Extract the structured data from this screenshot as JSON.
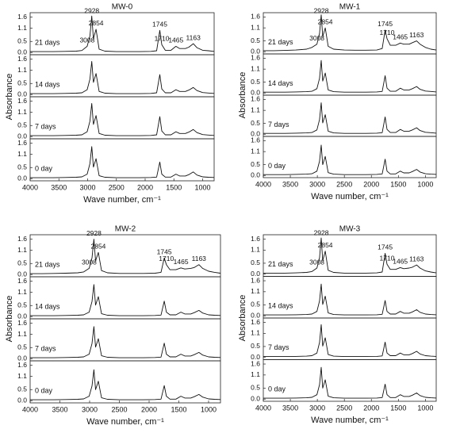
{
  "chart_data": [
    {
      "type": "line",
      "title": "MW-0",
      "xlabel": "Wave number, cm⁻¹",
      "ylabel": "Absorbance",
      "x": [
        4000,
        3800,
        3600,
        3400,
        3200,
        3100,
        3008,
        2960,
        2928,
        2900,
        2854,
        2800,
        2700,
        2500,
        2300,
        2100,
        1900,
        1800,
        1745,
        1710,
        1650,
        1550,
        1465,
        1400,
        1300,
        1240,
        1163,
        1100,
        1000,
        900,
        800
      ],
      "xlim": [
        4000,
        800
      ],
      "xticks": [
        4000,
        3500,
        3000,
        2500,
        2000,
        1500,
        1000
      ],
      "ylim": [
        -0.1,
        1.8
      ],
      "yticks": [
        {
          "value": 0,
          "label": "0.0"
        },
        0.5,
        1.1,
        1.6
      ],
      "color": "#111111",
      "series": [
        {
          "name": "21 days",
          "values": [
            0.04,
            0.04,
            0.04,
            0.05,
            0.06,
            0.09,
            0.28,
            0.75,
            1.65,
            0.62,
            1.05,
            0.15,
            0.06,
            0.04,
            0.04,
            0.04,
            0.05,
            0.08,
            1.0,
            0.35,
            0.1,
            0.1,
            0.28,
            0.18,
            0.18,
            0.24,
            0.4,
            0.22,
            0.1,
            0.08,
            0.05
          ]
        },
        {
          "name": "14 days",
          "values": [
            0.04,
            0.04,
            0.04,
            0.05,
            0.06,
            0.08,
            0.22,
            0.7,
            1.5,
            0.55,
            0.95,
            0.14,
            0.06,
            0.04,
            0.04,
            0.04,
            0.05,
            0.08,
            0.9,
            0.25,
            0.08,
            0.08,
            0.22,
            0.14,
            0.14,
            0.2,
            0.32,
            0.18,
            0.09,
            0.07,
            0.05
          ]
        },
        {
          "name": "7 days",
          "values": [
            0.04,
            0.04,
            0.04,
            0.05,
            0.06,
            0.08,
            0.22,
            0.7,
            1.5,
            0.55,
            0.95,
            0.14,
            0.06,
            0.04,
            0.04,
            0.04,
            0.05,
            0.08,
            0.9,
            0.25,
            0.08,
            0.08,
            0.22,
            0.14,
            0.14,
            0.2,
            0.32,
            0.18,
            0.09,
            0.07,
            0.05
          ]
        },
        {
          "name": "0 day",
          "values": [
            0.04,
            0.04,
            0.04,
            0.05,
            0.06,
            0.08,
            0.2,
            0.68,
            1.45,
            0.52,
            0.9,
            0.13,
            0.06,
            0.04,
            0.04,
            0.04,
            0.05,
            0.07,
            0.75,
            0.2,
            0.07,
            0.07,
            0.2,
            0.12,
            0.12,
            0.18,
            0.3,
            0.16,
            0.08,
            0.06,
            0.05
          ]
        }
      ],
      "annotations": [
        {
          "text": "2928",
          "x": 2928
        },
        {
          "text": "3008",
          "x": 3008
        },
        {
          "text": "2854",
          "x": 2854
        },
        {
          "text": "1745",
          "x": 1745
        },
        {
          "text": "1710",
          "x": 1710
        },
        {
          "text": "1465",
          "x": 1465
        },
        {
          "text": "1163",
          "x": 1163
        }
      ]
    },
    {
      "type": "line",
      "title": "MW-1",
      "xlabel": "Wave number, cm⁻¹",
      "ylabel": "Absorbance",
      "x": [
        4000,
        3800,
        3600,
        3400,
        3200,
        3100,
        3008,
        2960,
        2928,
        2900,
        2854,
        2800,
        2700,
        2500,
        2300,
        2100,
        1900,
        1800,
        1745,
        1710,
        1650,
        1550,
        1465,
        1400,
        1300,
        1240,
        1163,
        1100,
        1000,
        900,
        800
      ],
      "xlim": [
        4000,
        800
      ],
      "xticks": [
        4000,
        3500,
        3000,
        2500,
        2000,
        1500,
        1000
      ],
      "ylim": [
        -0.1,
        1.8
      ],
      "yticks": [
        {
          "value": 0,
          "label": "0.0"
        },
        0.5,
        1.1,
        1.6
      ],
      "color": "#111111",
      "series": [
        {
          "name": "21 days",
          "values": [
            0.05,
            0.05,
            0.06,
            0.08,
            0.12,
            0.2,
            0.35,
            0.85,
            1.7,
            0.7,
            1.1,
            0.25,
            0.12,
            0.08,
            0.07,
            0.07,
            0.08,
            0.15,
            1.0,
            0.6,
            0.3,
            0.3,
            0.4,
            0.35,
            0.35,
            0.42,
            0.5,
            0.35,
            0.2,
            0.12,
            0.08
          ]
        },
        {
          "name": "14 days",
          "values": [
            0.04,
            0.04,
            0.04,
            0.05,
            0.06,
            0.08,
            0.2,
            0.68,
            1.5,
            0.55,
            0.92,
            0.14,
            0.06,
            0.04,
            0.04,
            0.04,
            0.05,
            0.07,
            0.8,
            0.22,
            0.08,
            0.08,
            0.22,
            0.14,
            0.14,
            0.2,
            0.3,
            0.17,
            0.09,
            0.07,
            0.05
          ]
        },
        {
          "name": "7 days",
          "values": [
            0.04,
            0.04,
            0.04,
            0.05,
            0.06,
            0.08,
            0.2,
            0.68,
            1.45,
            0.52,
            0.9,
            0.14,
            0.06,
            0.04,
            0.04,
            0.04,
            0.05,
            0.07,
            0.8,
            0.22,
            0.08,
            0.08,
            0.22,
            0.14,
            0.14,
            0.2,
            0.3,
            0.17,
            0.09,
            0.07,
            0.05
          ]
        },
        {
          "name": "0 day",
          "values": [
            0.04,
            0.04,
            0.04,
            0.05,
            0.06,
            0.08,
            0.2,
            0.66,
            1.4,
            0.5,
            0.88,
            0.13,
            0.06,
            0.04,
            0.04,
            0.04,
            0.05,
            0.07,
            0.75,
            0.2,
            0.07,
            0.07,
            0.2,
            0.12,
            0.12,
            0.18,
            0.28,
            0.16,
            0.08,
            0.06,
            0.05
          ]
        }
      ],
      "annotations": [
        {
          "text": "2928",
          "x": 2928
        },
        {
          "text": "3008",
          "x": 3008
        },
        {
          "text": "2854",
          "x": 2854
        },
        {
          "text": "1745",
          "x": 1745
        },
        {
          "text": "1710",
          "x": 1710
        },
        {
          "text": "1465",
          "x": 1465
        },
        {
          "text": "1163",
          "x": 1163
        }
      ]
    },
    {
      "type": "line",
      "title": "MW-2",
      "xlabel": "Wave number, cm⁻¹",
      "ylabel": "Absorbance",
      "x": [
        4000,
        3800,
        3600,
        3400,
        3200,
        3100,
        3008,
        2960,
        2928,
        2900,
        2854,
        2800,
        2700,
        2500,
        2300,
        2100,
        1900,
        1800,
        1745,
        1710,
        1650,
        1550,
        1465,
        1400,
        1300,
        1240,
        1163,
        1100,
        1000,
        900,
        800
      ],
      "xlim": [
        4000,
        800
      ],
      "xticks": [
        4000,
        3500,
        3000,
        2500,
        2000,
        1500,
        1000
      ],
      "ylim": [
        -0.1,
        1.8
      ],
      "yticks": [
        {
          "value": 0,
          "label": "0.0"
        },
        0.5,
        1.1,
        1.6
      ],
      "color": "#111111",
      "series": [
        {
          "name": "21 days",
          "values": [
            0.04,
            0.04,
            0.05,
            0.06,
            0.08,
            0.12,
            0.28,
            0.75,
            1.6,
            0.62,
            1.0,
            0.18,
            0.08,
            0.05,
            0.05,
            0.05,
            0.06,
            0.1,
            0.75,
            0.45,
            0.22,
            0.22,
            0.3,
            0.25,
            0.28,
            0.32,
            0.45,
            0.28,
            0.15,
            0.1,
            0.06
          ]
        },
        {
          "name": "14 days",
          "values": [
            0.04,
            0.04,
            0.04,
            0.05,
            0.06,
            0.08,
            0.2,
            0.68,
            1.45,
            0.52,
            0.9,
            0.13,
            0.06,
            0.04,
            0.04,
            0.04,
            0.05,
            0.07,
            0.7,
            0.2,
            0.08,
            0.08,
            0.2,
            0.12,
            0.12,
            0.18,
            0.28,
            0.16,
            0.08,
            0.06,
            0.05
          ]
        },
        {
          "name": "7 days",
          "values": [
            0.04,
            0.04,
            0.04,
            0.05,
            0.06,
            0.08,
            0.2,
            0.68,
            1.45,
            0.52,
            0.9,
            0.13,
            0.06,
            0.04,
            0.04,
            0.04,
            0.05,
            0.07,
            0.7,
            0.2,
            0.08,
            0.08,
            0.2,
            0.12,
            0.12,
            0.18,
            0.28,
            0.16,
            0.08,
            0.06,
            0.05
          ]
        },
        {
          "name": "0 day",
          "values": [
            0.04,
            0.04,
            0.04,
            0.05,
            0.06,
            0.08,
            0.2,
            0.66,
            1.4,
            0.5,
            0.88,
            0.13,
            0.06,
            0.04,
            0.04,
            0.04,
            0.05,
            0.07,
            0.68,
            0.2,
            0.07,
            0.07,
            0.2,
            0.12,
            0.12,
            0.18,
            0.28,
            0.16,
            0.08,
            0.06,
            0.05
          ]
        }
      ],
      "annotations": [
        {
          "text": "2928",
          "x": 2928
        },
        {
          "text": "3008",
          "x": 3008
        },
        {
          "text": "2854",
          "x": 2854
        },
        {
          "text": "1745",
          "x": 1745
        },
        {
          "text": "1710",
          "x": 1710
        },
        {
          "text": "1465",
          "x": 1465
        },
        {
          "text": "1163",
          "x": 1163
        }
      ]
    },
    {
      "type": "line",
      "title": "MW-3",
      "xlabel": "Wave number, cm⁻¹",
      "ylabel": "Absorbance",
      "x": [
        4000,
        3800,
        3600,
        3400,
        3200,
        3100,
        3008,
        2960,
        2928,
        2900,
        2854,
        2800,
        2700,
        2500,
        2300,
        2100,
        1900,
        1800,
        1745,
        1710,
        1650,
        1550,
        1465,
        1400,
        1300,
        1240,
        1163,
        1100,
        1000,
        900,
        800
      ],
      "xlim": [
        4000,
        800
      ],
      "xticks": [
        4000,
        3500,
        3000,
        2500,
        2000,
        1500,
        1000
      ],
      "ylim": [
        -0.1,
        1.8
      ],
      "yticks": [
        {
          "value": 0,
          "label": "0.0"
        },
        0.5,
        1.1,
        1.6
      ],
      "color": "#111111",
      "series": [
        {
          "name": "21 days",
          "values": [
            0.04,
            0.04,
            0.05,
            0.06,
            0.08,
            0.12,
            0.28,
            0.75,
            1.65,
            0.62,
            1.05,
            0.18,
            0.08,
            0.05,
            0.05,
            0.05,
            0.06,
            0.1,
            0.95,
            0.45,
            0.22,
            0.22,
            0.3,
            0.25,
            0.28,
            0.32,
            0.42,
            0.28,
            0.15,
            0.1,
            0.06
          ]
        },
        {
          "name": "14 days",
          "values": [
            0.04,
            0.04,
            0.04,
            0.05,
            0.06,
            0.08,
            0.2,
            0.68,
            1.45,
            0.52,
            0.9,
            0.13,
            0.06,
            0.04,
            0.04,
            0.04,
            0.05,
            0.07,
            0.7,
            0.2,
            0.08,
            0.08,
            0.2,
            0.12,
            0.12,
            0.18,
            0.28,
            0.16,
            0.08,
            0.06,
            0.05
          ]
        },
        {
          "name": "7 days",
          "values": [
            0.04,
            0.04,
            0.04,
            0.05,
            0.06,
            0.08,
            0.2,
            0.68,
            1.5,
            0.52,
            0.9,
            0.13,
            0.06,
            0.04,
            0.04,
            0.04,
            0.05,
            0.07,
            0.7,
            0.2,
            0.08,
            0.08,
            0.2,
            0.12,
            0.12,
            0.18,
            0.28,
            0.16,
            0.08,
            0.06,
            0.05
          ]
        },
        {
          "name": "0 day",
          "values": [
            0.04,
            0.04,
            0.04,
            0.05,
            0.06,
            0.08,
            0.2,
            0.66,
            1.45,
            0.5,
            0.88,
            0.13,
            0.06,
            0.04,
            0.04,
            0.04,
            0.05,
            0.07,
            0.68,
            0.2,
            0.07,
            0.07,
            0.2,
            0.12,
            0.12,
            0.18,
            0.28,
            0.16,
            0.08,
            0.06,
            0.05
          ]
        }
      ],
      "annotations": [
        {
          "text": "2928",
          "x": 2928
        },
        {
          "text": "3008",
          "x": 3008
        },
        {
          "text": "2854",
          "x": 2854
        },
        {
          "text": "1745",
          "x": 1745
        },
        {
          "text": "1710",
          "x": 1710
        },
        {
          "text": "1465",
          "x": 1465
        },
        {
          "text": "1163",
          "x": 1163
        }
      ]
    }
  ]
}
